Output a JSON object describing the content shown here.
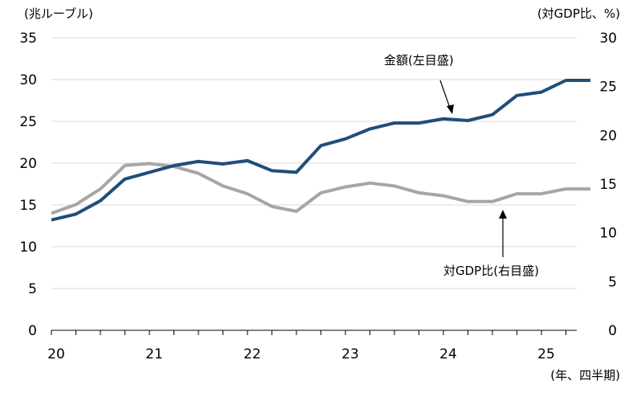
{
  "chart_data": {
    "type": "line",
    "units": {
      "left": "(兆ルーブル)",
      "right": "(対GDP比、%)",
      "x": "(年、四半期)"
    },
    "x_labels": [
      "20",
      "21",
      "22",
      "23",
      "24",
      "25"
    ],
    "y_left": {
      "ticks": [
        "0",
        "5",
        "10",
        "15",
        "20",
        "25",
        "30",
        "35"
      ],
      "range": [
        0,
        35
      ]
    },
    "y_right": {
      "ticks": [
        "0",
        "5",
        "10",
        "15",
        "20",
        "25",
        "30"
      ],
      "range": [
        0,
        30
      ]
    },
    "x": [
      "20Q1",
      "20Q2",
      "20Q3",
      "20Q4",
      "21Q1",
      "21Q2",
      "21Q3",
      "21Q4",
      "22Q1",
      "22Q2",
      "22Q3",
      "22Q4",
      "23Q1",
      "23Q2",
      "23Q3",
      "23Q4",
      "24Q1",
      "24Q2",
      "24Q3",
      "24Q4",
      "25Q1",
      "25Q2",
      "25Q3"
    ],
    "series": [
      {
        "name": "金額(左目盛)",
        "axis": "left",
        "color": "#1f4e79",
        "values": [
          13.2,
          13.9,
          15.5,
          18.1,
          18.9,
          19.7,
          20.2,
          19.9,
          20.3,
          19.1,
          18.9,
          22.1,
          22.9,
          24.1,
          24.8,
          24.8,
          25.3,
          25.1,
          25.8,
          28.1,
          28.5,
          29.9,
          29.9
        ]
      },
      {
        "name": "対GDP比(右目盛)",
        "axis": "right",
        "color": "#a6a6a6",
        "values": [
          12.0,
          12.9,
          14.5,
          16.9,
          17.1,
          16.8,
          16.1,
          14.8,
          14.0,
          12.7,
          12.2,
          14.1,
          14.7,
          15.1,
          14.8,
          14.1,
          13.8,
          13.2,
          13.2,
          14.0,
          14.0,
          14.5,
          14.5
        ]
      }
    ],
    "annotations": [
      {
        "text": "金額(左目盛)",
        "series": 0,
        "arrow": "down"
      },
      {
        "text": "対GDP比(右目盛)",
        "series": 1,
        "arrow": "up"
      }
    ]
  }
}
